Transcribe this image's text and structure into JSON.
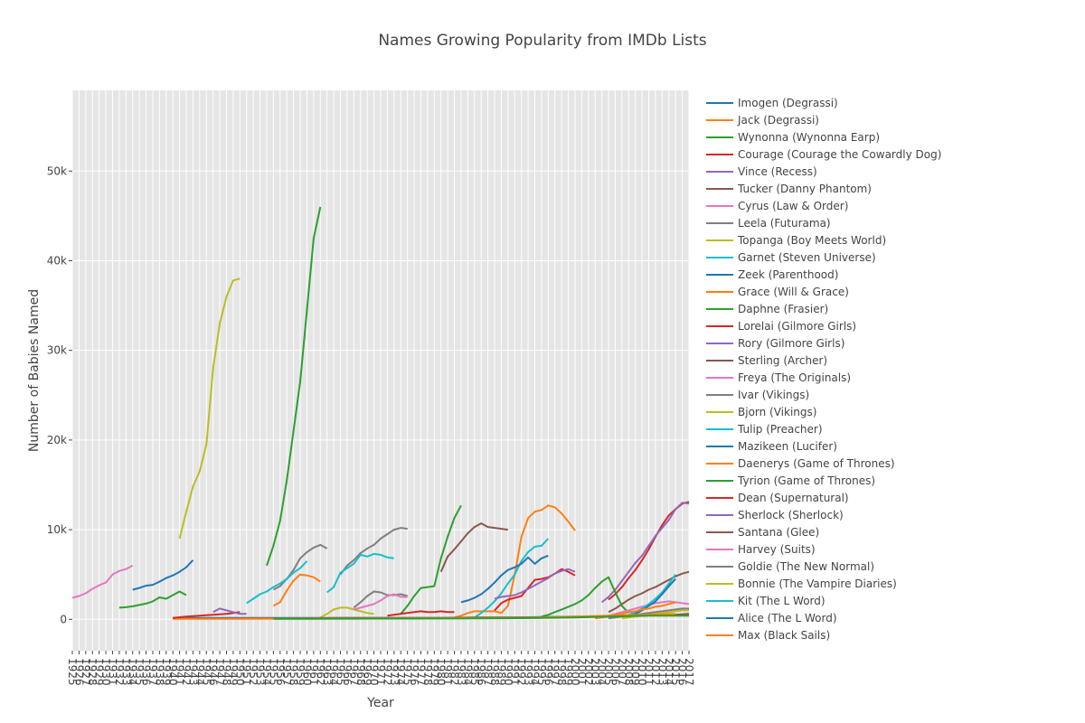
{
  "chart_data": {
    "type": "line",
    "title": "Names Growing Popularity from IMDb Lists",
    "xlabel": "Year",
    "ylabel": "Number of Babies Named",
    "xlim": [
      1925,
      2017
    ],
    "ylim": [
      -3500,
      59000
    ],
    "yticks": [
      0,
      10000,
      20000,
      30000,
      40000,
      50000
    ],
    "ytick_labels": [
      "0",
      "10k",
      "20k",
      "30k",
      "40k",
      "50k"
    ],
    "xtick_labels": [
      "1925",
      "1926",
      "1927",
      "1928",
      "1929",
      "1930",
      "1931",
      "1932",
      "1933",
      "1934",
      "1935",
      "1936",
      "1937",
      "1938",
      "1939",
      "1940",
      "1941",
      "1942",
      "1943",
      "1944",
      "1945",
      "1946",
      "1947",
      "1948",
      "1949",
      "1950",
      "1951",
      "1952",
      "1953",
      "1954",
      "1955",
      "1956",
      "1957",
      "1958",
      "1959",
      "1960",
      "1961",
      "1962",
      "1963",
      "1964",
      "1965",
      "1966",
      "1967",
      "1968",
      "1969",
      "1970",
      "1971",
      "1972",
      "1973",
      "1974",
      "1975",
      "1976",
      "1977",
      "1978",
      "1979",
      "1980",
      "1981",
      "1982",
      "1983",
      "1984",
      "1985",
      "1986",
      "1987",
      "1988",
      "1989",
      "1990",
      "1991",
      "1992",
      "1993",
      "1994",
      "1995",
      "1996",
      "1997",
      "1998",
      "1999",
      "2000",
      "2001",
      "2002",
      "2003",
      "2004",
      "2005",
      "2006",
      "2007",
      "2008",
      "2009",
      "2010",
      "2011",
      "2012",
      "2013",
      "2014",
      "2015",
      "2016",
      "2017"
    ],
    "grid": true,
    "legend": "right",
    "series": [
      {
        "name": "Imogen (Degrassi)",
        "color": "#1f77b4",
        "x": [
          1934,
          1935,
          1936,
          1937,
          1938,
          1939,
          1940,
          1941,
          1942,
          1943
        ],
        "y": [
          3300,
          3500,
          3750,
          3850,
          4200,
          4600,
          4900,
          5300,
          5800,
          6600
        ]
      },
      {
        "name": "Jack (Degrassi)",
        "color": "#ff7f0e",
        "x": [
          1955,
          1956,
          1957,
          1958,
          1959,
          1960,
          1961,
          1962
        ],
        "y": [
          1500,
          1900,
          3200,
          4300,
          5000,
          4900,
          4700,
          4200
        ]
      },
      {
        "name": "Wynonna (Wynonna Earp)",
        "color": "#2ca02c",
        "x": [
          1954,
          1955,
          1956,
          1957,
          1958,
          1959,
          1960,
          1961,
          1962
        ],
        "y": [
          6000,
          8200,
          11000,
          15500,
          21000,
          26500,
          34500,
          42500,
          46000
        ]
      },
      {
        "name": "Courage (Courage the Cowardly Dog)",
        "color": "#d62728",
        "x": [
          1940,
          1942,
          1944,
          1946,
          1948,
          1950
        ],
        "y": [
          150,
          300,
          400,
          500,
          600,
          800
        ]
      },
      {
        "name": "Vince (Recess)",
        "color": "#9467bd",
        "x": [
          1946,
          1947,
          1948,
          1949,
          1950,
          1951
        ],
        "y": [
          800,
          1200,
          1000,
          800,
          600,
          600
        ]
      },
      {
        "name": "Tucker (Danny Phantom)",
        "color": "#8c564b",
        "x": [
          1980,
          1981,
          1982,
          1983,
          1984,
          1985,
          1986,
          1987,
          1988,
          1989,
          1990
        ],
        "y": [
          5300,
          7000,
          7800,
          8700,
          9600,
          10300,
          10700,
          10300,
          10200,
          10100,
          10000
        ]
      },
      {
        "name": "Cyrus (Law & Order)",
        "color": "#e377c2",
        "x": [
          1925,
          1926,
          1927,
          1928,
          1929,
          1930,
          1931,
          1932,
          1933,
          1934
        ],
        "y": [
          2400,
          2600,
          2900,
          3400,
          3800,
          4100,
          5000,
          5400,
          5600,
          6000
        ]
      },
      {
        "name": "Leela (Futurama)",
        "color": "#7f7f7f",
        "x": [
          1955,
          1956,
          1957,
          1958,
          1959,
          1960,
          1961,
          1962,
          1963
        ],
        "y": [
          3300,
          3700,
          4500,
          5500,
          6800,
          7500,
          8000,
          8300,
          7900
        ]
      },
      {
        "name": "Topanga (Boy Meets World)",
        "color": "#bcbd22",
        "x": [
          1941,
          1942,
          1943,
          1944,
          1945,
          1946,
          1947,
          1948,
          1949,
          1950
        ],
        "y": [
          9000,
          12000,
          14800,
          16500,
          19500,
          28000,
          33000,
          36000,
          37800,
          38000
        ]
      },
      {
        "name": "Garnet (Steven Universe)",
        "color": "#17becf",
        "x": [
          1951,
          1952,
          1953,
          1954,
          1955,
          1956,
          1957,
          1958,
          1959,
          1960
        ],
        "y": [
          1800,
          2300,
          2800,
          3100,
          3600,
          4000,
          4500,
          5200,
          5700,
          6500
        ]
      }
    ]
  },
  "legend_items": [
    {
      "label": "Imogen (Degrassi)",
      "color": "#1f77b4"
    },
    {
      "label": "Jack (Degrassi)",
      "color": "#ff7f0e"
    },
    {
      "label": "Wynonna (Wynonna Earp)",
      "color": "#2ca02c"
    },
    {
      "label": "Courage (Courage the Cowardly Dog)",
      "color": "#d62728"
    },
    {
      "label": "Vince (Recess)",
      "color": "#9467bd"
    },
    {
      "label": "Tucker (Danny Phantom)",
      "color": "#8c564b"
    },
    {
      "label": "Cyrus (Law & Order)",
      "color": "#e377c2"
    },
    {
      "label": "Leela (Futurama)",
      "color": "#7f7f7f"
    },
    {
      "label": "Topanga (Boy Meets World)",
      "color": "#bcbd22"
    },
    {
      "label": "Garnet (Steven Universe)",
      "color": "#17becf"
    },
    {
      "label": "Zeek (Parenthood)",
      "color": "#1f77b4"
    },
    {
      "label": "Grace (Will & Grace)",
      "color": "#ff7f0e"
    },
    {
      "label": "Daphne (Frasier)",
      "color": "#2ca02c"
    },
    {
      "label": "Lorelai (Gilmore Girls)",
      "color": "#d62728"
    },
    {
      "label": "Rory (Gilmore Girls)",
      "color": "#9467bd"
    },
    {
      "label": "Sterling (Archer)",
      "color": "#8c564b"
    },
    {
      "label": "Freya (The Originals)",
      "color": "#e377c2"
    },
    {
      "label": "Ivar (Vikings)",
      "color": "#7f7f7f"
    },
    {
      "label": "Bjorn (Vikings)",
      "color": "#bcbd22"
    },
    {
      "label": "Tulip (Preacher)",
      "color": "#17becf"
    },
    {
      "label": "Mazikeen (Lucifer)",
      "color": "#1f77b4"
    },
    {
      "label": "Daenerys (Game of Thrones)",
      "color": "#ff7f0e"
    },
    {
      "label": "Tyrion (Game of Thrones)",
      "color": "#2ca02c"
    },
    {
      "label": "Dean (Supernatural)",
      "color": "#d62728"
    },
    {
      "label": "Sherlock (Sherlock)",
      "color": "#9467bd"
    },
    {
      "label": "Santana (Glee)",
      "color": "#8c564b"
    },
    {
      "label": "Harvey (Suits)",
      "color": "#e377c2"
    },
    {
      "label": "Goldie (The New Normal)",
      "color": "#7f7f7f"
    },
    {
      "label": "Bonnie (The Vampire Diaries)",
      "color": "#bcbd22"
    },
    {
      "label": "Kit (The L Word)",
      "color": "#17becf"
    },
    {
      "label": "Alice (The L Word)",
      "color": "#1f77b4"
    },
    {
      "label": "Max (Black Sails)",
      "color": "#ff7f0e"
    }
  ],
  "background_series": [
    {
      "color": "#2ca02c",
      "x": [
        1932,
        1933,
        1934,
        1935,
        1936,
        1937,
        1938,
        1939,
        1940,
        1941,
        1942
      ],
      "y": [
        1300,
        1350,
        1450,
        1600,
        1750,
        2000,
        2450,
        2300,
        2700,
        3100,
        2700
      ]
    },
    {
      "color": "#7f7f7f",
      "x": [
        1965,
        1966,
        1967,
        1968,
        1969,
        1970,
        1971,
        1972,
        1973,
        1974,
        1975
      ],
      "y": [
        5000,
        6000,
        6600,
        7400,
        7900,
        8300,
        9000,
        9500,
        10000,
        10200,
        10100
      ]
    },
    {
      "color": "#17becf",
      "x": [
        1963,
        1964,
        1965,
        1966,
        1967,
        1968,
        1969,
        1970,
        1971,
        1972,
        1973
      ],
      "y": [
        3000,
        3600,
        5200,
        5700,
        6200,
        7200,
        7000,
        7300,
        7200,
        6900,
        6800
      ]
    },
    {
      "color": "#bcbd22",
      "x": [
        1962,
        1963,
        1964,
        1965,
        1966,
        1967,
        1968,
        1969,
        1970
      ],
      "y": [
        200,
        600,
        1100,
        1300,
        1300,
        1100,
        900,
        700,
        600
      ]
    },
    {
      "color": "#7f7f7f",
      "x": [
        1967,
        1968,
        1969,
        1970,
        1971,
        1972,
        1973,
        1974,
        1975
      ],
      "y": [
        1300,
        1900,
        2600,
        3100,
        3000,
        2700,
        2700,
        2800,
        2600
      ]
    },
    {
      "color": "#e377c2",
      "x": [
        1967,
        1968,
        1969,
        1970,
        1971,
        1972,
        1973,
        1974,
        1975
      ],
      "y": [
        1100,
        1300,
        1500,
        1700,
        2100,
        2600,
        2800,
        2500,
        2500
      ]
    },
    {
      "color": "#2ca02c",
      "x": [
        1974,
        1975,
        1976,
        1977,
        1978,
        1979,
        1980,
        1981,
        1982,
        1983
      ],
      "y": [
        600,
        1500,
        2600,
        3500,
        3600,
        3700,
        6800,
        9200,
        11300,
        12700
      ]
    },
    {
      "color": "#d62728",
      "x": [
        1972,
        1973,
        1974,
        1975,
        1976,
        1977,
        1978,
        1979,
        1980,
        1981,
        1982
      ],
      "y": [
        400,
        500,
        600,
        700,
        800,
        900,
        800,
        800,
        900,
        800,
        800
      ]
    },
    {
      "color": "#ff7f0e",
      "x": [
        1982,
        1983,
        1984,
        1985,
        1986,
        1987,
        1988,
        1989,
        1990,
        1991,
        1992,
        1993,
        1994,
        1995,
        1996,
        1997,
        1998,
        1999,
        2000
      ],
      "y": [
        200,
        400,
        700,
        900,
        900,
        900,
        900,
        700,
        1500,
        5000,
        9200,
        11300,
        12000,
        12200,
        12700,
        12500,
        11800,
        10900,
        9900
      ]
    },
    {
      "color": "#17becf",
      "x": [
        1985,
        1986,
        1987,
        1988,
        1989,
        1990,
        1991,
        1992,
        1993,
        1994,
        1995,
        1996
      ],
      "y": [
        200,
        700,
        1300,
        2000,
        2900,
        4000,
        5000,
        6500,
        7500,
        8100,
        8200,
        9000
      ]
    },
    {
      "color": "#1f77b4",
      "x": [
        1983,
        1984,
        1985,
        1986,
        1987,
        1988,
        1989,
        1990,
        1991,
        1992,
        1993,
        1994,
        1995,
        1996
      ],
      "y": [
        1900,
        2100,
        2400,
        2800,
        3400,
        4100,
        4900,
        5500,
        5800,
        6200,
        6900,
        6200,
        6800,
        7100
      ]
    },
    {
      "color": "#d62728",
      "x": [
        1988,
        1989,
        1990,
        1991,
        1992,
        1993,
        1994,
        1995,
        1996,
        1997,
        1998,
        1999,
        2000
      ],
      "y": [
        1000,
        1800,
        2200,
        2400,
        2600,
        3500,
        4400,
        4500,
        4700,
        5100,
        5600,
        5300,
        4900
      ]
    },
    {
      "color": "#9467bd",
      "x": [
        1988,
        1989,
        1990,
        1991,
        1992,
        1993,
        1994,
        1995,
        1996,
        1997,
        1998,
        1999,
        2000
      ],
      "y": [
        2300,
        2500,
        2600,
        2700,
        3000,
        3400,
        3800,
        4200,
        4600,
        5100,
        5400,
        5600,
        5300
      ]
    },
    {
      "color": "#d62728",
      "x": [
        2005,
        2006,
        2007,
        2008,
        2009,
        2010,
        2011,
        2012,
        2013,
        2014,
        2015,
        2016,
        2017
      ],
      "y": [
        2200,
        2800,
        3600,
        4600,
        5500,
        6600,
        7800,
        9200,
        10500,
        11600,
        12300,
        12900,
        13100
      ]
    },
    {
      "color": "#9467bd",
      "x": [
        2004,
        2005,
        2006,
        2007,
        2008,
        2009,
        2010,
        2011,
        2012,
        2013,
        2014,
        2015,
        2016,
        2017
      ],
      "y": [
        1900,
        2500,
        3300,
        4300,
        5300,
        6300,
        7100,
        8200,
        9300,
        10200,
        11100,
        12300,
        13000,
        12900
      ]
    },
    {
      "color": "#8c564b",
      "x": [
        2005,
        2006,
        2007,
        2008,
        2009,
        2010,
        2011,
        2012,
        2013,
        2014,
        2015,
        2016,
        2017
      ],
      "y": [
        800,
        1200,
        1700,
        2200,
        2600,
        2900,
        3300,
        3600,
        4000,
        4400,
        4800,
        5100,
        5300
      ]
    },
    {
      "color": "#2ca02c",
      "x": [
        1995,
        1996,
        1997,
        1998,
        1999,
        2000,
        2001,
        2002,
        2003,
        2004,
        2005,
        2006,
        2007,
        2008
      ],
      "y": [
        300,
        500,
        800,
        1100,
        1400,
        1700,
        2100,
        2700,
        3500,
        4200,
        4700,
        3000,
        1500,
        700
      ]
    },
    {
      "color": "#e377c2",
      "x": [
        2005,
        2006,
        2007,
        2008,
        2009,
        2010,
        2011,
        2012,
        2013,
        2014,
        2015,
        2016,
        2017
      ],
      "y": [
        400,
        600,
        800,
        1000,
        1200,
        1400,
        1600,
        1800,
        1900,
        2000,
        1900,
        1800,
        1700
      ]
    },
    {
      "color": "#17becf",
      "x": [
        2008,
        2009,
        2010,
        2011,
        2012,
        2013,
        2014,
        2015
      ],
      "y": [
        500,
        800,
        1200,
        1700,
        2300,
        3000,
        4000,
        5000
      ]
    },
    {
      "color": "#1f77b4",
      "x": [
        2008,
        2009,
        2010,
        2011,
        2012,
        2013,
        2014,
        2015
      ],
      "y": [
        300,
        600,
        1000,
        1500,
        2000,
        2800,
        3700,
        4500
      ]
    },
    {
      "color": "#ff7f0e",
      "x": [
        2003,
        2004,
        2005,
        2006,
        2007,
        2008,
        2009,
        2010,
        2011,
        2012,
        2013,
        2014,
        2015
      ],
      "y": [
        100,
        200,
        300,
        500,
        600,
        800,
        900,
        1100,
        1200,
        1400,
        1500,
        1700,
        1900
      ]
    },
    {
      "color": "#7f7f7f",
      "x": [
        2005,
        2006,
        2007,
        2008,
        2009,
        2010,
        2011,
        2012,
        2013,
        2014,
        2015,
        2016,
        2017
      ],
      "y": [
        100,
        200,
        300,
        400,
        500,
        600,
        700,
        800,
        900,
        1000,
        1100,
        1200,
        1200
      ]
    },
    {
      "color": "#bcbd22",
      "x": [
        2007,
        2008,
        2009,
        2010,
        2011,
        2012,
        2013,
        2014,
        2015,
        2016,
        2017
      ],
      "y": [
        100,
        200,
        300,
        400,
        500,
        600,
        700,
        800,
        900,
        1000,
        1000
      ]
    },
    {
      "color": "#1f77b4",
      "x": [
        1940,
        1945,
        1950,
        1955,
        1960,
        1965,
        1970,
        1975,
        1980,
        1985,
        1990,
        1995,
        2000,
        2005,
        2010,
        2015,
        2017
      ],
      "y": [
        150,
        150,
        150,
        150,
        150,
        150,
        150,
        150,
        150,
        200,
        200,
        250,
        300,
        350,
        400,
        500,
        600
      ]
    },
    {
      "color": "#8c564b",
      "x": [
        1950,
        1955,
        1960,
        1965,
        1970,
        1975,
        1980,
        1985,
        1990,
        1995,
        2000,
        2005,
        2010,
        2015,
        2017
      ],
      "y": [
        100,
        100,
        100,
        150,
        150,
        150,
        150,
        200,
        200,
        200,
        250,
        300,
        400,
        500,
        600
      ]
    },
    {
      "color": "#ff7f0e",
      "x": [
        1940,
        1945,
        1950,
        1955,
        1960,
        1965,
        1970,
        1975,
        1980,
        1985,
        1990,
        1995,
        2000,
        2005,
        2010,
        2015
      ],
      "y": [
        50,
        60,
        60,
        70,
        80,
        90,
        100,
        100,
        120,
        150,
        150,
        200,
        300,
        400,
        500,
        600
      ]
    },
    {
      "color": "#2ca02c",
      "x": [
        1955,
        1960,
        1965,
        1970,
        1975,
        1980,
        1985,
        1990,
        1995,
        2000,
        2005,
        2010,
        2015,
        2017
      ],
      "y": [
        50,
        60,
        70,
        80,
        80,
        90,
        100,
        120,
        150,
        200,
        300,
        400,
        400,
        400
      ]
    }
  ]
}
